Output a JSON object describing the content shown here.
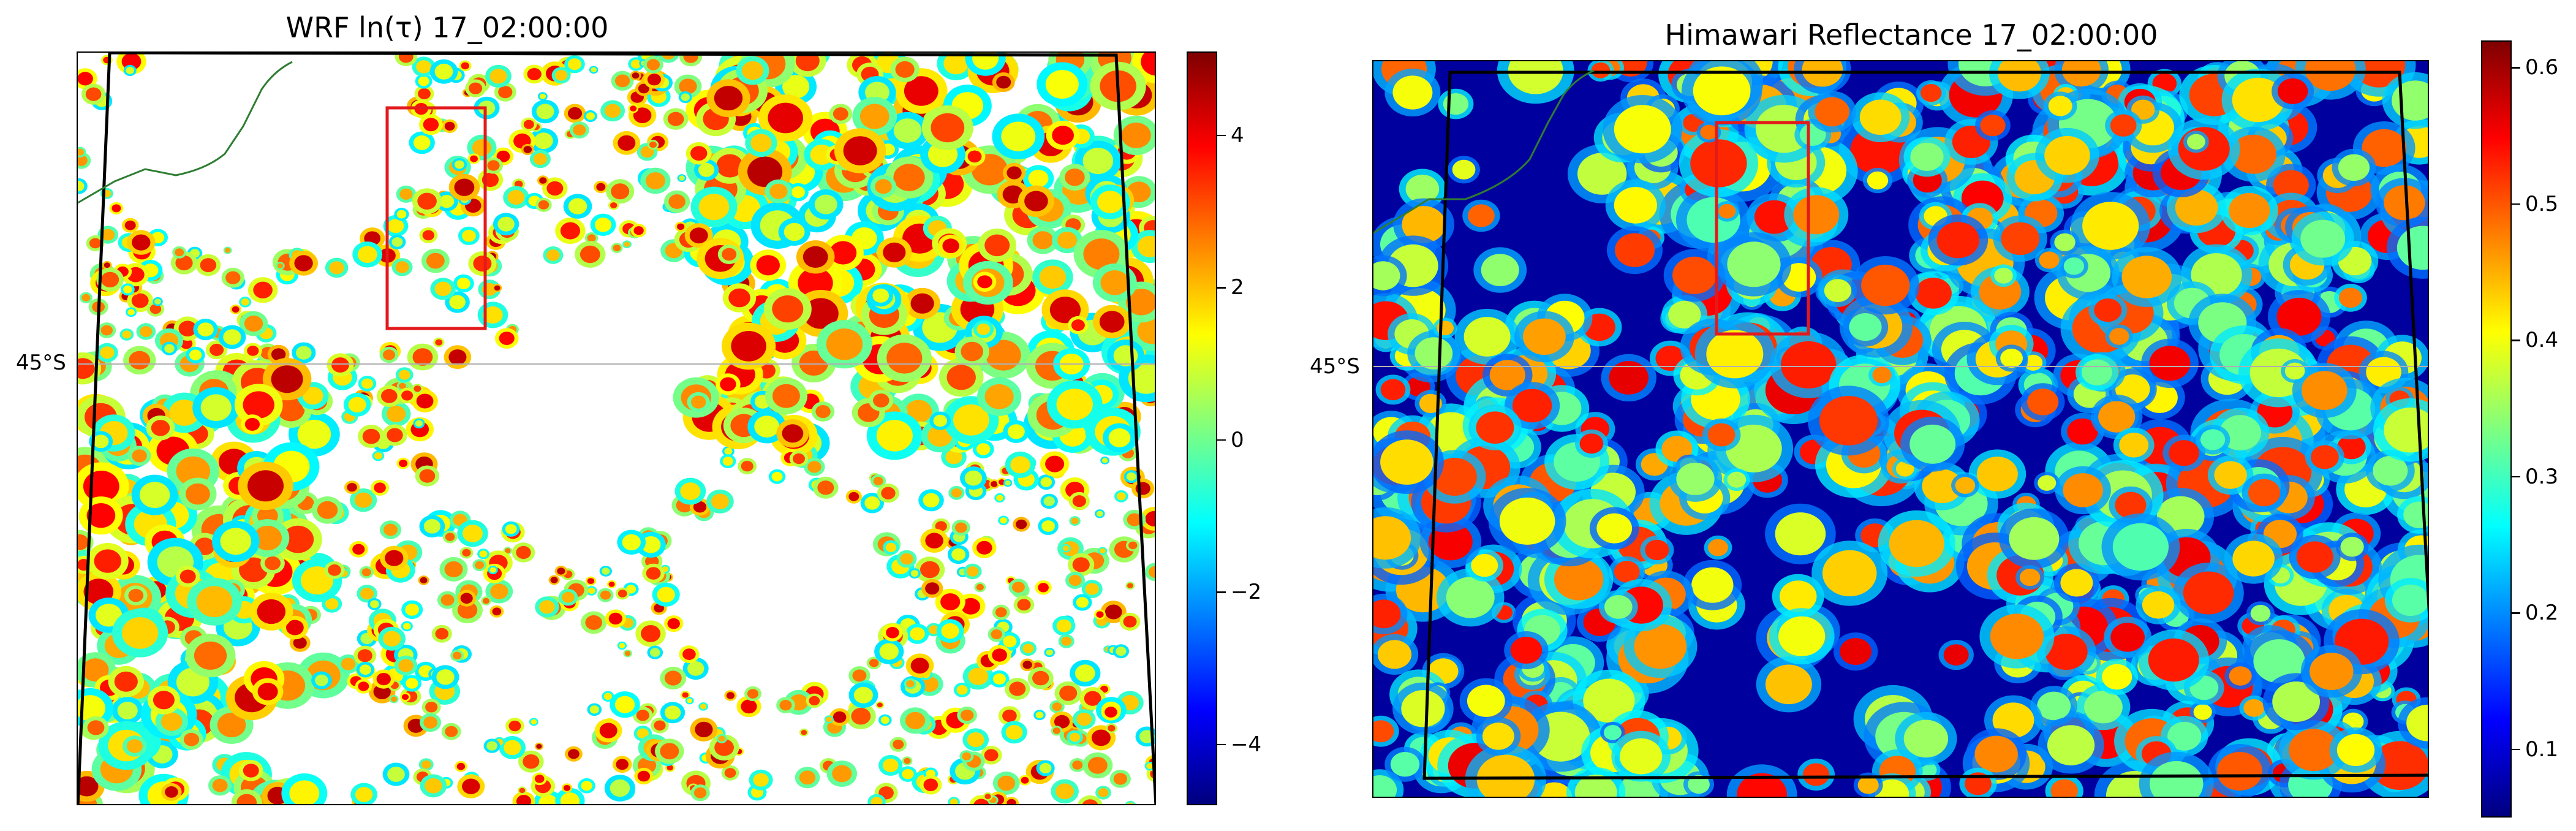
{
  "chart_data": [
    {
      "type": "heatmap",
      "title": "WRF ln(τ) 17_02:00:00",
      "latitude_label": "45°S",
      "colormap": "jet",
      "clim": [
        -4.8,
        5.1
      ],
      "colorbar_ticks": [
        {
          "value": 4,
          "label": "4"
        },
        {
          "value": 2,
          "label": "2"
        },
        {
          "value": 0,
          "label": "0"
        },
        {
          "value": -2,
          "label": "−2"
        },
        {
          "value": -4,
          "label": "−4"
        }
      ],
      "field": "cloud optical depth (log), sparse cellular cloud field with clear (white) gaps",
      "highlight_box": {
        "color": "#e31a1c"
      },
      "domain_outline": "black",
      "coastline_color": "#2e7d32"
    },
    {
      "type": "heatmap",
      "title": "Himawari Reflectance 17_02:00:00",
      "latitude_label": "45°S",
      "colormap": "jet",
      "clim": [
        0.05,
        0.62
      ],
      "colorbar_ticks": [
        {
          "value": 0.6,
          "label": "0.6"
        },
        {
          "value": 0.5,
          "label": "0.5"
        },
        {
          "value": 0.4,
          "label": "0.4"
        },
        {
          "value": 0.3,
          "label": "0.3"
        },
        {
          "value": 0.2,
          "label": "0.2"
        },
        {
          "value": 0.1,
          "label": "0.1"
        }
      ],
      "field": "satellite reflectance, dense cloud cells over dark-blue background",
      "highlight_box": {
        "color": "#e31a1c"
      },
      "domain_outline": "black",
      "coastline_color": "#2e7d32"
    }
  ],
  "colors": {
    "jet_stops": [
      "#00007f",
      "#0000ff",
      "#007fff",
      "#00ffff",
      "#7fff7f",
      "#ffff00",
      "#ff7f00",
      "#ff0000",
      "#7f0000"
    ],
    "highlight": "#e31a1c",
    "gridline": "#b0b0b0"
  }
}
